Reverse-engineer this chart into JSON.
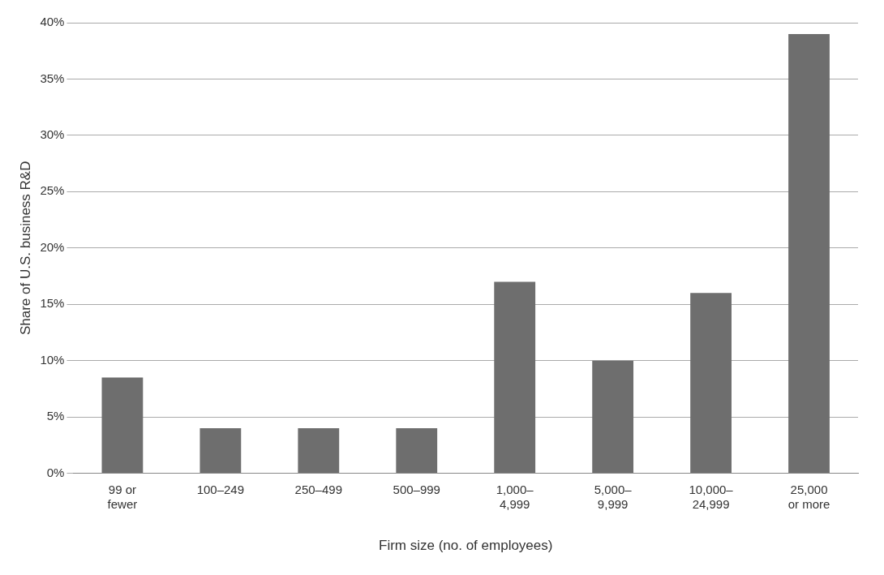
{
  "chart_data": {
    "type": "bar",
    "xlabel": "Firm size (no. of employees)",
    "ylabel": "Share of U.S. business R&D",
    "categories": [
      "99 or\nfewer",
      "100–249",
      "250–499",
      "500–999",
      "1,000–\n4,999",
      "5,000–\n9,999",
      "10,000–\n24,999",
      "25,000\nor more"
    ],
    "values": [
      8.5,
      4,
      4,
      4,
      17,
      10,
      16,
      39
    ],
    "color": "#6e6e6e",
    "ylim": [
      0,
      40
    ],
    "yticks": [
      {
        "value": 0,
        "label": "0%"
      },
      {
        "value": 5,
        "label": "5%"
      },
      {
        "value": 10,
        "label": "10%"
      },
      {
        "value": 15,
        "label": "15%"
      },
      {
        "value": 20,
        "label": "20%"
      },
      {
        "value": 25,
        "label": "25%"
      },
      {
        "value": 30,
        "label": "30%"
      },
      {
        "value": 35,
        "label": "35%"
      },
      {
        "value": 40,
        "label": "40%"
      }
    ],
    "grid": "y"
  }
}
